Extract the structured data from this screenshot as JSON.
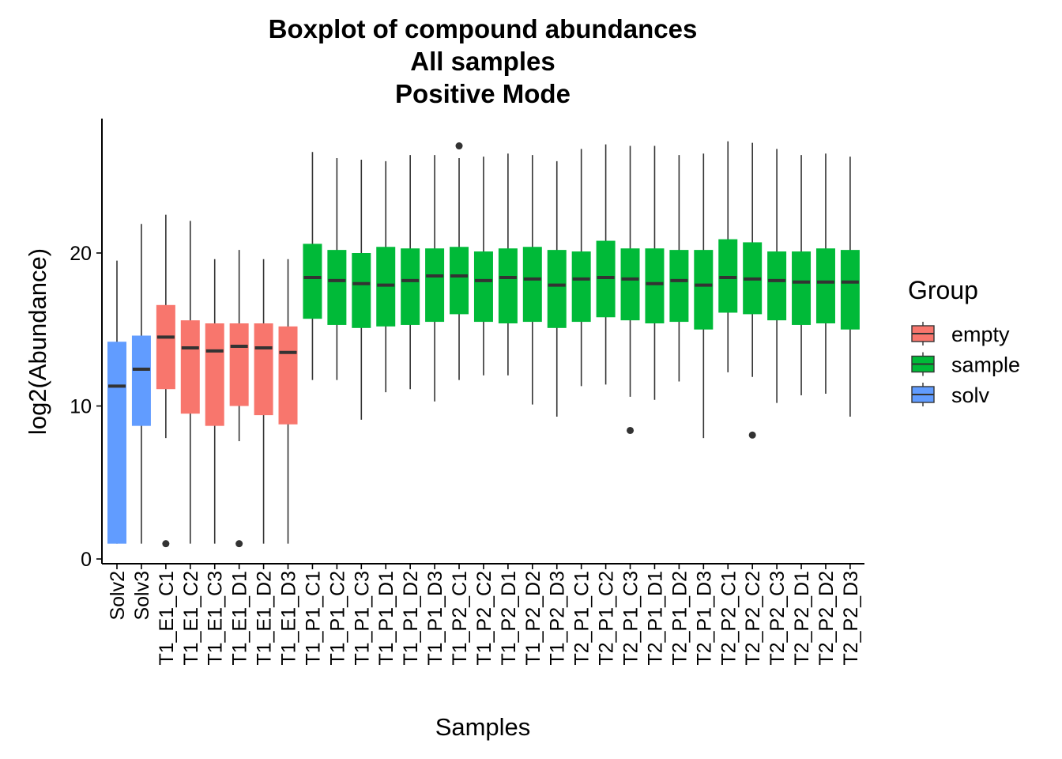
{
  "chart_data": {
    "type": "boxplot",
    "title_lines": [
      "Boxplot of compound abundances",
      "All samples",
      "Positive Mode"
    ],
    "xlabel": "Samples",
    "ylabel": "log2(Abundance)",
    "ylim": [
      0,
      28
    ],
    "yticks": [
      0,
      10,
      20
    ],
    "grid": false,
    "legend": {
      "title": "Group",
      "placement": "right",
      "entries": [
        {
          "name": "empty",
          "color": "#F8766D"
        },
        {
          "name": "sample",
          "color": "#00BA38"
        },
        {
          "name": "solv",
          "color": "#619CFF"
        }
      ]
    },
    "colors": {
      "empty": "#F8766D",
      "sample": "#00BA38",
      "solv": "#619CFF"
    },
    "boxes": [
      {
        "label": "Solv2",
        "group": "solv",
        "min": 1.0,
        "q1": 1.0,
        "median": 11.3,
        "q3": 14.2,
        "max": 19.5,
        "outliers": []
      },
      {
        "label": "Solv3",
        "group": "solv",
        "min": 1.0,
        "q1": 8.7,
        "median": 12.4,
        "q3": 14.6,
        "max": 21.9,
        "outliers": []
      },
      {
        "label": "T1_E1_C1",
        "group": "empty",
        "min": 7.9,
        "q1": 11.1,
        "median": 14.5,
        "q3": 16.6,
        "max": 22.5,
        "outliers": [
          1.0
        ]
      },
      {
        "label": "T1_E1_C2",
        "group": "empty",
        "min": 1.0,
        "q1": 9.5,
        "median": 13.8,
        "q3": 15.6,
        "max": 22.1,
        "outliers": []
      },
      {
        "label": "T1_E1_C3",
        "group": "empty",
        "min": 1.0,
        "q1": 8.7,
        "median": 13.6,
        "q3": 15.4,
        "max": 19.6,
        "outliers": []
      },
      {
        "label": "T1_E1_D1",
        "group": "empty",
        "min": 7.7,
        "q1": 10.0,
        "median": 13.9,
        "q3": 15.4,
        "max": 20.2,
        "outliers": [
          1.0
        ]
      },
      {
        "label": "T1_E1_D2",
        "group": "empty",
        "min": 1.0,
        "q1": 9.4,
        "median": 13.8,
        "q3": 15.4,
        "max": 19.6,
        "outliers": []
      },
      {
        "label": "T1_E1_D3",
        "group": "empty",
        "min": 1.0,
        "q1": 8.8,
        "median": 13.5,
        "q3": 15.2,
        "max": 19.6,
        "outliers": []
      },
      {
        "label": "T1_P1_C1",
        "group": "sample",
        "min": 11.7,
        "q1": 15.7,
        "median": 18.4,
        "q3": 20.6,
        "max": 26.6,
        "outliers": []
      },
      {
        "label": "T1_P1_C2",
        "group": "sample",
        "min": 11.7,
        "q1": 15.3,
        "median": 18.2,
        "q3": 20.2,
        "max": 26.2,
        "outliers": []
      },
      {
        "label": "T1_P1_C3",
        "group": "sample",
        "min": 9.1,
        "q1": 15.1,
        "median": 18.0,
        "q3": 20.0,
        "max": 26.1,
        "outliers": []
      },
      {
        "label": "T1_P1_D1",
        "group": "sample",
        "min": 10.9,
        "q1": 15.2,
        "median": 17.9,
        "q3": 20.4,
        "max": 26.0,
        "outliers": []
      },
      {
        "label": "T1_P1_D2",
        "group": "sample",
        "min": 11.1,
        "q1": 15.3,
        "median": 18.2,
        "q3": 20.3,
        "max": 26.4,
        "outliers": []
      },
      {
        "label": "T1_P1_D3",
        "group": "sample",
        "min": 10.3,
        "q1": 15.5,
        "median": 18.5,
        "q3": 20.3,
        "max": 26.4,
        "outliers": []
      },
      {
        "label": "T1_P2_C1",
        "group": "sample",
        "min": 11.7,
        "q1": 16.0,
        "median": 18.5,
        "q3": 20.4,
        "max": 26.2,
        "outliers": [
          27.0
        ]
      },
      {
        "label": "T1_P2_C2",
        "group": "sample",
        "min": 12.0,
        "q1": 15.5,
        "median": 18.2,
        "q3": 20.1,
        "max": 26.3,
        "outliers": []
      },
      {
        "label": "T1_P2_D1",
        "group": "sample",
        "min": 12.0,
        "q1": 15.4,
        "median": 18.4,
        "q3": 20.3,
        "max": 26.5,
        "outliers": []
      },
      {
        "label": "T1_P2_D2",
        "group": "sample",
        "min": 10.1,
        "q1": 15.5,
        "median": 18.3,
        "q3": 20.4,
        "max": 26.4,
        "outliers": []
      },
      {
        "label": "T1_P2_D3",
        "group": "sample",
        "min": 9.3,
        "q1": 15.1,
        "median": 17.9,
        "q3": 20.2,
        "max": 26.0,
        "outliers": []
      },
      {
        "label": "T2_P1_C1",
        "group": "sample",
        "min": 11.3,
        "q1": 15.5,
        "median": 18.3,
        "q3": 20.1,
        "max": 26.8,
        "outliers": []
      },
      {
        "label": "T2_P1_C2",
        "group": "sample",
        "min": 11.4,
        "q1": 15.8,
        "median": 18.4,
        "q3": 20.8,
        "max": 27.1,
        "outliers": []
      },
      {
        "label": "T2_P1_C3",
        "group": "sample",
        "min": 10.6,
        "q1": 15.6,
        "median": 18.3,
        "q3": 20.3,
        "max": 27.0,
        "outliers": [
          8.4
        ]
      },
      {
        "label": "T2_P1_D1",
        "group": "sample",
        "min": 10.4,
        "q1": 15.4,
        "median": 18.0,
        "q3": 20.3,
        "max": 27.0,
        "outliers": []
      },
      {
        "label": "T2_P1_D2",
        "group": "sample",
        "min": 11.6,
        "q1": 15.5,
        "median": 18.2,
        "q3": 20.2,
        "max": 26.4,
        "outliers": []
      },
      {
        "label": "T2_P1_D3",
        "group": "sample",
        "min": 7.9,
        "q1": 15.0,
        "median": 17.9,
        "q3": 20.2,
        "max": 26.5,
        "outliers": []
      },
      {
        "label": "T2_P2_C1",
        "group": "sample",
        "min": 12.2,
        "q1": 16.1,
        "median": 18.4,
        "q3": 20.9,
        "max": 27.3,
        "outliers": []
      },
      {
        "label": "T2_P2_C2",
        "group": "sample",
        "min": 11.9,
        "q1": 16.0,
        "median": 18.3,
        "q3": 20.7,
        "max": 27.2,
        "outliers": [
          8.1
        ]
      },
      {
        "label": "T2_P2_C3",
        "group": "sample",
        "min": 10.2,
        "q1": 15.6,
        "median": 18.2,
        "q3": 20.1,
        "max": 26.8,
        "outliers": []
      },
      {
        "label": "T2_P2_D1",
        "group": "sample",
        "min": 10.7,
        "q1": 15.3,
        "median": 18.1,
        "q3": 20.1,
        "max": 26.4,
        "outliers": []
      },
      {
        "label": "T2_P2_D2",
        "group": "sample",
        "min": 10.8,
        "q1": 15.4,
        "median": 18.1,
        "q3": 20.3,
        "max": 26.5,
        "outliers": []
      },
      {
        "label": "T2_P2_D3",
        "group": "sample",
        "min": 9.3,
        "q1": 15.0,
        "median": 18.1,
        "q3": 20.2,
        "max": 26.3,
        "outliers": []
      }
    ]
  }
}
